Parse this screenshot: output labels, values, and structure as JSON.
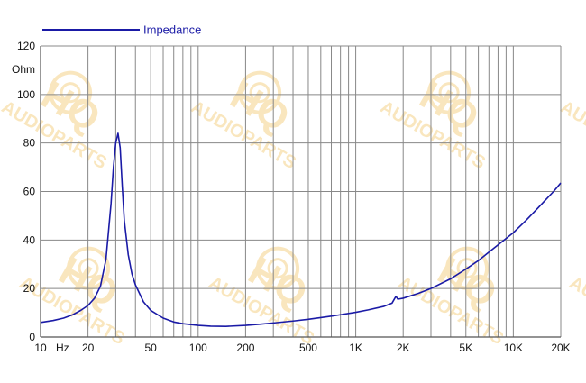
{
  "chart_data": {
    "type": "line",
    "title": "",
    "xlabel": "Hz",
    "ylabel": "Ohm",
    "x_scale": "log",
    "xlim": [
      10,
      20000
    ],
    "ylim": [
      0,
      120
    ],
    "grid": true,
    "legend_position": "top-left",
    "x_ticks": [
      {
        "value": 10,
        "label": "10"
      },
      {
        "value": 20,
        "label": "20"
      },
      {
        "value": 50,
        "label": "50"
      },
      {
        "value": 100,
        "label": "100"
      },
      {
        "value": 200,
        "label": "200"
      },
      {
        "value": 500,
        "label": "500"
      },
      {
        "value": 1000,
        "label": "1K"
      },
      {
        "value": 2000,
        "label": "2K"
      },
      {
        "value": 5000,
        "label": "5K"
      },
      {
        "value": 10000,
        "label": "10K"
      },
      {
        "value": 20000,
        "label": "20K"
      }
    ],
    "y_ticks": [
      {
        "value": 0,
        "label": "0"
      },
      {
        "value": 20,
        "label": "20"
      },
      {
        "value": 40,
        "label": "40"
      },
      {
        "value": 60,
        "label": "60"
      },
      {
        "value": 80,
        "label": "80"
      },
      {
        "value": 100,
        "label": "100"
      },
      {
        "value": 120,
        "label": "120"
      }
    ],
    "series": [
      {
        "name": "Impedance",
        "color": "#1a1aa6",
        "points": [
          [
            10,
            6.0
          ],
          [
            12,
            6.8
          ],
          [
            14,
            7.8
          ],
          [
            16,
            9.2
          ],
          [
            18,
            11.0
          ],
          [
            20,
            13.0
          ],
          [
            22,
            16.0
          ],
          [
            24,
            21.0
          ],
          [
            26,
            32.0
          ],
          [
            28,
            55.0
          ],
          [
            29,
            70.0
          ],
          [
            30,
            80.0
          ],
          [
            31,
            84.0
          ],
          [
            32,
            78.0
          ],
          [
            33,
            62.0
          ],
          [
            34,
            48.0
          ],
          [
            36,
            34.0
          ],
          [
            38,
            26.0
          ],
          [
            40,
            21.5
          ],
          [
            45,
            14.5
          ],
          [
            50,
            11.0
          ],
          [
            60,
            7.8
          ],
          [
            70,
            6.2
          ],
          [
            80,
            5.5
          ],
          [
            100,
            4.8
          ],
          [
            120,
            4.5
          ],
          [
            150,
            4.4
          ],
          [
            200,
            4.8
          ],
          [
            250,
            5.3
          ],
          [
            300,
            5.8
          ],
          [
            400,
            6.6
          ],
          [
            500,
            7.3
          ],
          [
            600,
            8.0
          ],
          [
            700,
            8.6
          ],
          [
            800,
            9.2
          ],
          [
            1000,
            10.2
          ],
          [
            1200,
            11.2
          ],
          [
            1500,
            12.6
          ],
          [
            1700,
            14.0
          ],
          [
            1800,
            16.8
          ],
          [
            1850,
            15.6
          ],
          [
            2000,
            16.0
          ],
          [
            2500,
            18.0
          ],
          [
            3000,
            20.0
          ],
          [
            4000,
            24.0
          ],
          [
            5000,
            28.0
          ],
          [
            6000,
            31.5
          ],
          [
            7000,
            35.0
          ],
          [
            8000,
            38.0
          ],
          [
            10000,
            43.0
          ],
          [
            12000,
            48.0
          ],
          [
            14000,
            52.5
          ],
          [
            16000,
            56.5
          ],
          [
            18000,
            60.0
          ],
          [
            20000,
            63.5
          ]
        ]
      }
    ]
  },
  "watermark": {
    "logo_text": "HQ",
    "sub_text": "AUDIOPARTS",
    "color": "#f5d38a"
  },
  "colors": {
    "grid": "#888888",
    "axis": "#555555",
    "series": "#1a1aa6"
  }
}
